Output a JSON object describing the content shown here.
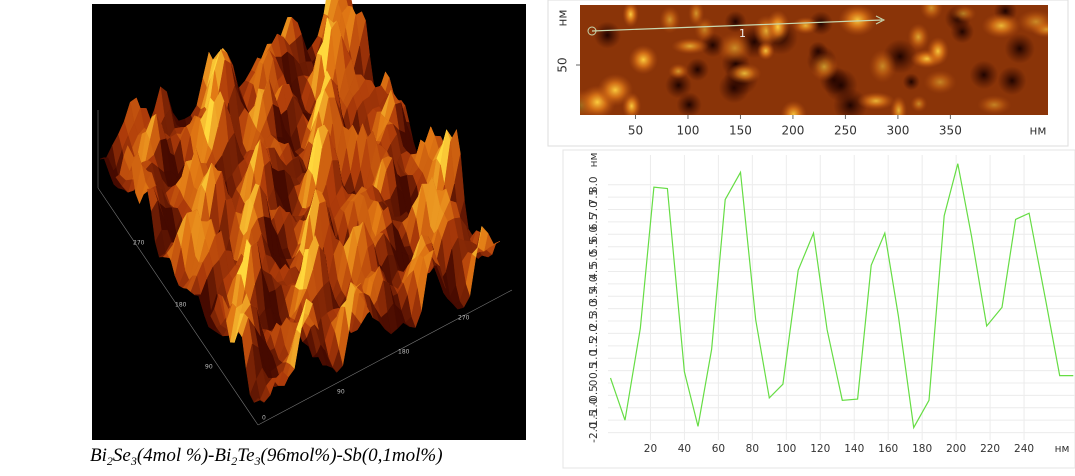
{
  "caption": {
    "parts": [
      "Bi",
      "2",
      "Se",
      "3",
      "(4mol %)-Bi",
      "2",
      "Te",
      "3",
      "(96mol%)-Sb(0,1mol%)"
    ]
  },
  "afm_3d": {
    "left_axis_labels": [
      "270",
      "180",
      "90",
      "0"
    ],
    "right_axis_labels": [
      "90",
      "180",
      "270"
    ]
  },
  "afm_2d": {
    "x_unit": "нм",
    "y_unit": "нм",
    "xlim": [
      0,
      443
    ],
    "ylim": [
      0,
      110
    ],
    "xticks": [
      50,
      100,
      150,
      200,
      250,
      300,
      350
    ],
    "yticks": [
      50
    ],
    "profile_label": "1"
  },
  "chart_data": {
    "type": "line",
    "x": [
      -3.5,
      5,
      14,
      22,
      30,
      40,
      48,
      56,
      64,
      73,
      82,
      90,
      98,
      107,
      116,
      124,
      133,
      142,
      150,
      158,
      166,
      175,
      184,
      193,
      201,
      209,
      218,
      227,
      235,
      243,
      253,
      261,
      269
    ],
    "values": [
      0.2,
      -1.5,
      2.2,
      7.9,
      7.85,
      0.45,
      -1.75,
      1.35,
      7.4,
      8.5,
      2.55,
      -0.6,
      -0.05,
      4.55,
      6.05,
      2.15,
      -0.7,
      -0.65,
      4.75,
      6.05,
      2.7,
      -1.8,
      -0.7,
      6.75,
      8.85,
      5.95,
      2.3,
      3.05,
      6.6,
      6.85,
      3.25,
      0.3,
      0.3
    ],
    "color": "#66dd44",
    "x_label": "нм",
    "y_label": "нм",
    "xlim": [
      -5,
      270
    ],
    "ylim": [
      -2.3,
      9.2
    ],
    "xticks": [
      20,
      40,
      60,
      80,
      100,
      120,
      140,
      160,
      180,
      200,
      220,
      240
    ],
    "yticks": [
      {
        "value": -2,
        "label": "-2.0"
      },
      -1.5,
      {
        "value": -1,
        "label": "-1.0"
      },
      -0.5,
      0,
      0.5,
      {
        "value": 1,
        "label": "1.0"
      },
      1.5,
      {
        "value": 2,
        "label": "2.0"
      },
      2.5,
      {
        "value": 3,
        "label": "3.0"
      },
      3.5,
      {
        "value": 4,
        "label": "4.0"
      },
      4.5,
      {
        "value": 5,
        "label": "5.0"
      },
      5.5,
      {
        "value": 6,
        "label": "6.0"
      },
      6.5,
      {
        "value": 7,
        "label": "7.0"
      },
      7.5,
      {
        "value": 8,
        "label": "8.0"
      }
    ],
    "grid": true
  }
}
